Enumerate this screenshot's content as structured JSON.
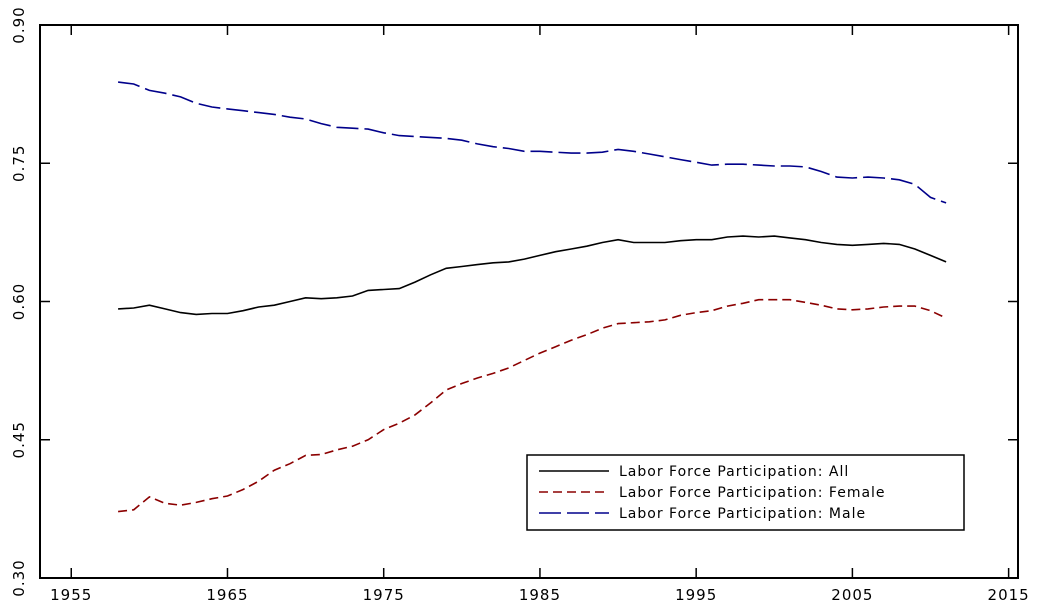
{
  "chart_data": {
    "type": "line",
    "x": [
      1958,
      1959,
      1960,
      1961,
      1962,
      1963,
      1964,
      1965,
      1966,
      1967,
      1968,
      1969,
      1970,
      1971,
      1972,
      1973,
      1974,
      1975,
      1976,
      1977,
      1978,
      1979,
      1980,
      1981,
      1982,
      1983,
      1984,
      1985,
      1986,
      1987,
      1988,
      1989,
      1990,
      1991,
      1992,
      1993,
      1994,
      1995,
      1996,
      1997,
      1998,
      1999,
      2000,
      2001,
      2002,
      2003,
      2004,
      2005,
      2006,
      2007,
      2008,
      2009,
      2010,
      2011
    ],
    "series": [
      {
        "name": "Labor Force Participation: All",
        "color": "#000000",
        "dash": "solid",
        "values": [
          0.592,
          0.593,
          0.596,
          0.592,
          0.588,
          0.586,
          0.587,
          0.587,
          0.59,
          0.594,
          0.596,
          0.6,
          0.604,
          0.603,
          0.604,
          0.606,
          0.612,
          0.613,
          0.614,
          0.621,
          0.629,
          0.636,
          0.638,
          0.64,
          0.642,
          0.643,
          0.646,
          0.65,
          0.654,
          0.657,
          0.66,
          0.664,
          0.667,
          0.664,
          0.664,
          0.664,
          0.666,
          0.667,
          0.667,
          0.67,
          0.671,
          0.67,
          0.671,
          0.669,
          0.667,
          0.664,
          0.662,
          0.661,
          0.662,
          0.663,
          0.662,
          0.657,
          0.65,
          0.643
        ]
      },
      {
        "name": "Labor Force Participation: Female",
        "color": "#8b0000",
        "dash": "dashed",
        "values": [
          0.372,
          0.374,
          0.388,
          0.381,
          0.379,
          0.382,
          0.386,
          0.389,
          0.396,
          0.405,
          0.417,
          0.424,
          0.433,
          0.434,
          0.439,
          0.443,
          0.45,
          0.461,
          0.468,
          0.477,
          0.49,
          0.504,
          0.511,
          0.517,
          0.522,
          0.528,
          0.536,
          0.544,
          0.551,
          0.558,
          0.564,
          0.571,
          0.576,
          0.577,
          0.578,
          0.58,
          0.585,
          0.588,
          0.59,
          0.595,
          0.598,
          0.602,
          0.602,
          0.602,
          0.599,
          0.596,
          0.592,
          0.591,
          0.592,
          0.594,
          0.595,
          0.595,
          0.59,
          0.582
        ]
      },
      {
        "name": "Labor Force Participation: Male",
        "color": "#00008b",
        "dash": "long-dashed",
        "values": [
          0.838,
          0.836,
          0.829,
          0.826,
          0.822,
          0.815,
          0.811,
          0.809,
          0.807,
          0.805,
          0.803,
          0.8,
          0.798,
          0.793,
          0.789,
          0.788,
          0.787,
          0.783,
          0.78,
          0.779,
          0.778,
          0.777,
          0.775,
          0.771,
          0.768,
          0.766,
          0.763,
          0.763,
          0.762,
          0.761,
          0.761,
          0.762,
          0.765,
          0.763,
          0.76,
          0.757,
          0.754,
          0.751,
          0.748,
          0.749,
          0.749,
          0.748,
          0.747,
          0.747,
          0.746,
          0.741,
          0.735,
          0.734,
          0.735,
          0.734,
          0.732,
          0.727,
          0.713,
          0.707
        ]
      }
    ],
    "xlim": [
      1953,
      2015.6
    ],
    "xticks": [
      1955,
      1965,
      1975,
      1985,
      1995,
      2005,
      2015
    ],
    "ylim": [
      0.3,
      0.9
    ],
    "yticks": [
      {
        "value": 0.3,
        "label": "0.30"
      },
      0.45,
      {
        "value": 0.6,
        "label": "0.60"
      },
      0.75,
      {
        "value": 0.9,
        "label": "0.90"
      }
    ],
    "legend": "lower right",
    "grid": false
  }
}
